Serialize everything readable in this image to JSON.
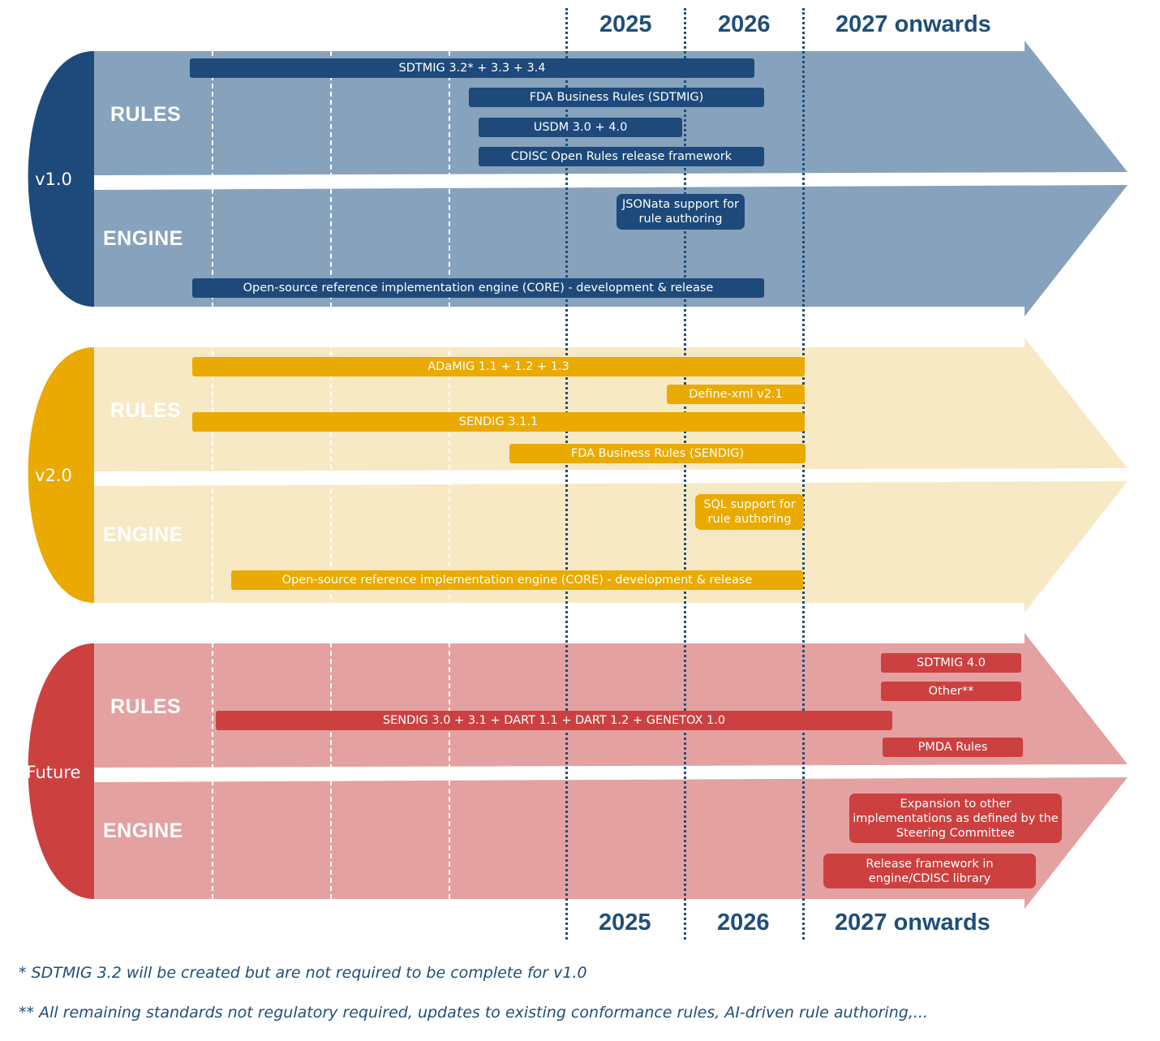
{
  "header_years": [
    "2025",
    "2026",
    "2027 onwards"
  ],
  "footer_years": [
    "2025",
    "2026",
    "2027 onwards"
  ],
  "colors": {
    "v1_dark": "#1d4a7a",
    "v1_light": "#87a2bd",
    "v2_dark": "#ebaa02",
    "v2_light": "#f8e9c5",
    "future_dark": "#cd4040",
    "future_light": "#e4a1a1",
    "year_text": "#1f4e79"
  },
  "sections": {
    "v1": {
      "version": "v1.0",
      "rules_label": "RULES",
      "engine_label": "ENGINE",
      "rules_items": [
        "SDTMIG 3.2* + 3.3 + 3.4",
        "FDA Business Rules (SDTMIG)",
        "USDM 3.0 + 4.0",
        "CDISC Open Rules release framework"
      ],
      "engine_items": [
        "JSONata support for rule authoring",
        "Open-source reference implementation engine (CORE) - development & release"
      ]
    },
    "v2": {
      "version": "v2.0",
      "rules_label": "RULES",
      "engine_label": "ENGINE",
      "rules_items": [
        "ADaMIG 1.1 + 1.2 + 1.3",
        "Define-xml v2.1",
        "SENDIG 3.1.1",
        "FDA Business Rules (SENDIG)"
      ],
      "engine_items": [
        "SQL support for rule authoring",
        "Open-source reference implementation engine (CORE) - development & release"
      ]
    },
    "future": {
      "version": "Future",
      "rules_label": "RULES",
      "engine_label": "ENGINE",
      "rules_items": [
        "SDTMIG 4.0",
        "Other**",
        "SENDIG 3.0 + 3.1 + DART 1.1 + DART 1.2 + GENETOX 1.0",
        "PMDA Rules"
      ],
      "engine_items": [
        "Expansion to other implementations as defined by the Steering Committee",
        "Release framework in engine/CDISC library"
      ]
    }
  },
  "footnotes": [
    "* SDTMIG 3.2 will be created but are not required to be complete for v1.0",
    "** All remaining standards not regulatory required, updates to existing conformance rules, AI-driven rule authoring,..."
  ]
}
